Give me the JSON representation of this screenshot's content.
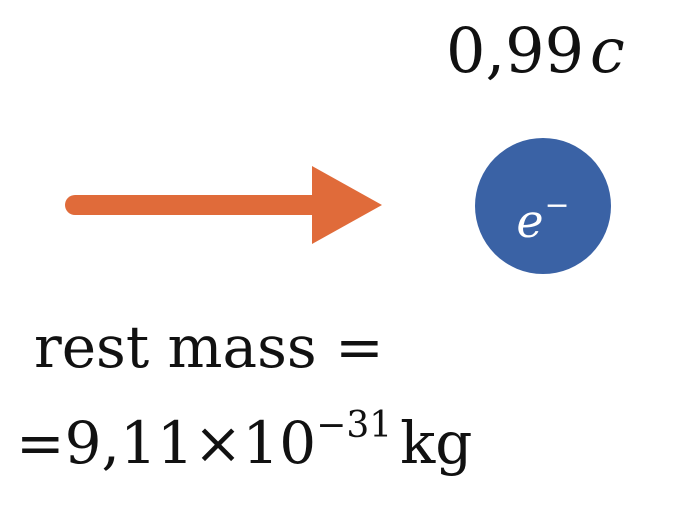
{
  "speed": {
    "value": "0,99",
    "unit": "c"
  },
  "particle": {
    "symbol": "e",
    "charge": "−",
    "color": "#3a62a5"
  },
  "arrow": {
    "color": "#e06b3a",
    "direction": "right"
  },
  "rest_mass": {
    "label": "rest mass =",
    "equals": "=",
    "mantissa": "9,11",
    "times": "×",
    "base": "10",
    "exponent": "−31",
    "unit": "kg"
  }
}
